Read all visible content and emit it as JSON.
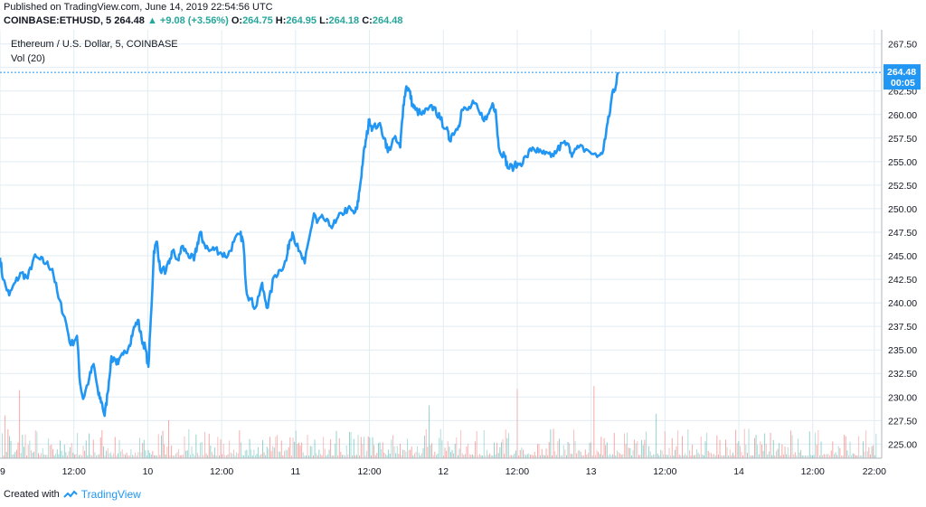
{
  "header": {
    "published": "Published on TradingView.com, June 14, 2019 22:54:56 UTC",
    "symbol": "COINBASE:ETHUSD, 5",
    "last": "264.48",
    "change": "+9.08 (+3.56%)",
    "o_label": "O:",
    "o_value": "264.75",
    "h_label": "H:",
    "h_value": "264.95",
    "l_label": "L:",
    "l_value": "264.18",
    "c_label": "C:",
    "c_value": "264.48"
  },
  "legend": {
    "title": "Ethereum / U.S. Dollar, 5, COINBASE",
    "volume": "Vol (20)"
  },
  "price_tag": {
    "value": "264.48",
    "countdown": "00:05"
  },
  "footer": {
    "created": "Created with",
    "brand": "TradingView"
  },
  "colors": {
    "line": "#2196f3",
    "vol_up": "#26a69a",
    "vol_down": "#ef5350",
    "grid": "#e1ecf2",
    "accent": "#2196f3"
  },
  "chart_data": {
    "type": "line",
    "ylim": [
      223.5,
      269
    ],
    "yticks": [
      "267.50",
      "265.00",
      "262.50",
      "260.00",
      "257.50",
      "255.00",
      "252.50",
      "250.00",
      "247.50",
      "245.00",
      "242.50",
      "240.00",
      "237.50",
      "235.00",
      "232.50",
      "230.00",
      "227.50",
      "225.00"
    ],
    "xtick_labels": [
      "9",
      "12:00",
      "10",
      "12:00",
      "11",
      "12:00",
      "12",
      "12:00",
      "13",
      "12:00",
      "14",
      "12:00",
      "22:00"
    ],
    "xtick_hours": [
      0,
      12,
      24,
      36,
      48,
      60,
      72,
      84,
      96,
      108,
      120,
      132,
      142
    ],
    "xlim_hours": [
      0,
      143.2
    ],
    "series": [
      {
        "points": [
          [
            0,
            244.8
          ],
          [
            0.5,
            242.5
          ],
          [
            1.5,
            240.8
          ],
          [
            2.5,
            242.2
          ],
          [
            3.5,
            243.2
          ],
          [
            4.5,
            242.6
          ],
          [
            5.5,
            244.8
          ],
          [
            6.5,
            244.6
          ],
          [
            7.5,
            244.2
          ],
          [
            8.5,
            243.6
          ],
          [
            9.5,
            240.5
          ],
          [
            10.5,
            238.5
          ],
          [
            11.5,
            235.5
          ],
          [
            12.5,
            236.5
          ],
          [
            13,
            231.5
          ],
          [
            13.5,
            229.8
          ],
          [
            14.5,
            232
          ],
          [
            15.2,
            233.5
          ],
          [
            16,
            230.2
          ],
          [
            16.5,
            229.5
          ],
          [
            17,
            228
          ],
          [
            17.5,
            230.5
          ],
          [
            18,
            233.8
          ],
          [
            18.5,
            234.2
          ],
          [
            19.2,
            233.5
          ],
          [
            20,
            234.5
          ],
          [
            21,
            235.5
          ],
          [
            21.6,
            237
          ],
          [
            22.4,
            238.2
          ],
          [
            23,
            236.2
          ],
          [
            23.6,
            235.2
          ],
          [
            24.1,
            233.2
          ],
          [
            24.6,
            239.5
          ],
          [
            25,
            245.5
          ],
          [
            25.5,
            246.5
          ],
          [
            26,
            243.5
          ],
          [
            27,
            243.5
          ],
          [
            27.5,
            244.2
          ],
          [
            28,
            245.5
          ],
          [
            29,
            244.5
          ],
          [
            29.5,
            246
          ],
          [
            30.5,
            245.2
          ],
          [
            31.5,
            244.5
          ],
          [
            32,
            246
          ],
          [
            32.5,
            247.5
          ],
          [
            33,
            246.5
          ],
          [
            34,
            245.5
          ],
          [
            35,
            245.8
          ],
          [
            36,
            245.2
          ],
          [
            37,
            245
          ],
          [
            38,
            246.5
          ],
          [
            39,
            247.3
          ],
          [
            39.5,
            246.5
          ],
          [
            40,
            241.5
          ],
          [
            40.5,
            240.5
          ],
          [
            41.5,
            239.5
          ],
          [
            42.5,
            242
          ],
          [
            43,
            240.5
          ],
          [
            43.5,
            239.5
          ],
          [
            44.5,
            242.8
          ],
          [
            45.5,
            243.5
          ],
          [
            46.5,
            244.5
          ],
          [
            47,
            246.5
          ],
          [
            47.5,
            247.5
          ],
          [
            48.5,
            245.5
          ],
          [
            49.5,
            244.2
          ],
          [
            50.5,
            247.8
          ],
          [
            51,
            249.5
          ],
          [
            51.5,
            248.5
          ],
          [
            52.5,
            249
          ],
          [
            53.5,
            248.2
          ],
          [
            54.5,
            248.5
          ],
          [
            55.5,
            249.5
          ],
          [
            56.5,
            250
          ],
          [
            57.5,
            249.5
          ],
          [
            58,
            250
          ],
          [
            58.5,
            252.5
          ],
          [
            59,
            255.5
          ],
          [
            59.5,
            257.5
          ],
          [
            60,
            259.5
          ],
          [
            60.5,
            258.5
          ],
          [
            61.5,
            259
          ],
          [
            62.5,
            257.5
          ],
          [
            63,
            256
          ],
          [
            64,
            257.5
          ],
          [
            65,
            256.5
          ],
          [
            65.5,
            261
          ],
          [
            66,
            263
          ],
          [
            66.5,
            262.5
          ],
          [
            67,
            261
          ],
          [
            67.5,
            260.5
          ],
          [
            68.5,
            260
          ],
          [
            69.5,
            260.5
          ],
          [
            70.5,
            260.8
          ],
          [
            71.5,
            259.5
          ],
          [
            72.5,
            258.5
          ],
          [
            73,
            257.3
          ],
          [
            73.5,
            258
          ],
          [
            74.5,
            258.8
          ],
          [
            75,
            260.5
          ],
          [
            76,
            260.5
          ],
          [
            77,
            261.2
          ],
          [
            78,
            260
          ],
          [
            79,
            259.5
          ],
          [
            80,
            261.2
          ],
          [
            80.5,
            260.5
          ],
          [
            81,
            256.5
          ],
          [
            82,
            255.5
          ],
          [
            82.5,
            254.3
          ],
          [
            83.5,
            254.5
          ],
          [
            84.5,
            254.8
          ],
          [
            85.5,
            255.5
          ],
          [
            86.5,
            256.5
          ],
          [
            87.5,
            256
          ],
          [
            88.5,
            255.8
          ],
          [
            89.5,
            255.5
          ],
          [
            90.5,
            256.2
          ],
          [
            91.5,
            257
          ],
          [
            92.5,
            256.5
          ],
          [
            93,
            255.8
          ],
          [
            94,
            256.5
          ],
          [
            95.5,
            256.2
          ],
          [
            97,
            255.5
          ],
          [
            98,
            256.2
          ],
          [
            98.5,
            258.5
          ],
          [
            99,
            260
          ],
          [
            99.5,
            262.5
          ],
          [
            100,
            263
          ],
          [
            100.4,
            264.48
          ]
        ]
      }
    ]
  }
}
